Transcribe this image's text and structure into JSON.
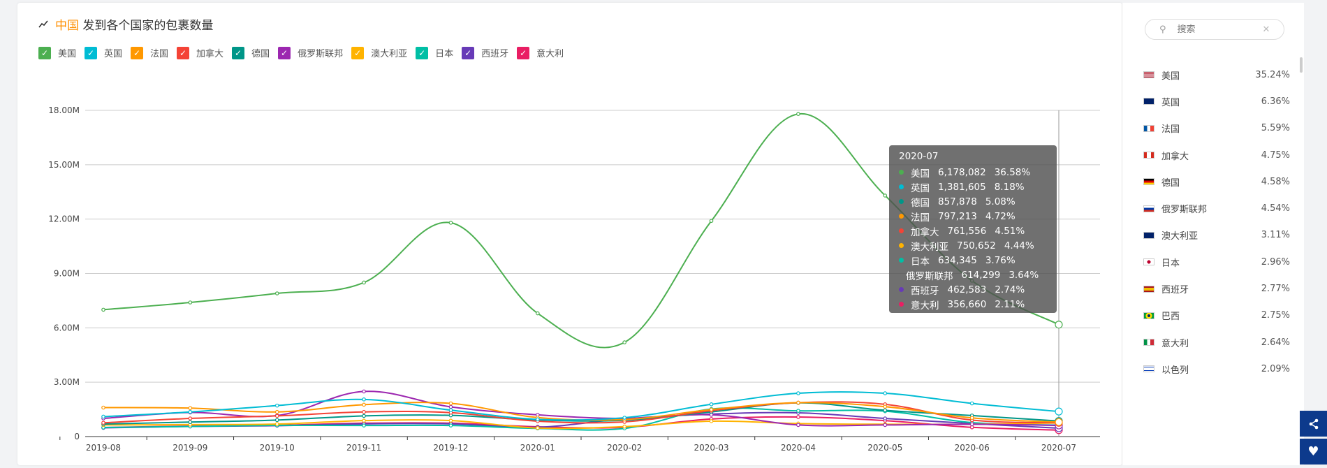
{
  "title": {
    "highlight": "中国",
    "text": "发到各个国家的包裹数量",
    "icon": "trend-line-icon"
  },
  "chart_data": {
    "type": "line",
    "smooth": true,
    "title": "中国 发到各个国家的包裹数量",
    "x": [
      "2019-08",
      "2019-09",
      "2019-10",
      "2019-11",
      "2019-12",
      "2020-01",
      "2020-02",
      "2020-03",
      "2020-04",
      "2020-05",
      "2020-06",
      "2020-07"
    ],
    "ylim": [
      0,
      18000000
    ],
    "yticks": [
      "0",
      "3.00M",
      "6.00M",
      "9.00M",
      "12.00M",
      "15.00M",
      "18.00M"
    ],
    "grid": true,
    "legend_position": "top-left",
    "series": [
      {
        "name": "美国",
        "color": "#4caf50",
        "values": [
          7000000,
          7400000,
          7900000,
          8500000,
          11800000,
          6800000,
          5200000,
          11900000,
          17800000,
          13300000,
          8600000,
          6178082
        ]
      },
      {
        "name": "英国",
        "color": "#00bcd4",
        "values": [
          1100000,
          1360000,
          1710000,
          2050000,
          1460000,
          950000,
          1040000,
          1780000,
          2390000,
          2390000,
          1830000,
          1381605
        ]
      },
      {
        "name": "法国",
        "color": "#ff9800",
        "values": [
          1600000,
          1570000,
          1360000,
          1760000,
          1830000,
          1050000,
          940000,
          1490000,
          1870000,
          1650000,
          1030000,
          797213
        ]
      },
      {
        "name": "加拿大",
        "color": "#f44336",
        "values": [
          760000,
          1000000,
          1140000,
          1360000,
          1320000,
          850000,
          810000,
          1430000,
          1870000,
          1780000,
          910000,
          761556
        ]
      },
      {
        "name": "德国",
        "color": "#009688",
        "values": [
          690000,
          800000,
          910000,
          1140000,
          1170000,
          910000,
          900000,
          1360000,
          1860000,
          1450000,
          1160000,
          857878
        ]
      },
      {
        "name": "俄罗斯联邦",
        "color": "#9c27b0",
        "values": [
          1000000,
          1330000,
          1160000,
          2490000,
          1640000,
          1200000,
          1000000,
          1200000,
          640000,
          640000,
          680000,
          614299
        ]
      },
      {
        "name": "澳大利亚",
        "color": "#ffb300",
        "values": [
          640000,
          660000,
          690000,
          880000,
          880000,
          470000,
          550000,
          850000,
          720000,
          680000,
          680000,
          750652
        ]
      },
      {
        "name": "日本",
        "color": "#00bfa5",
        "values": [
          500000,
          560000,
          620000,
          610000,
          610000,
          450000,
          450000,
          1520000,
          1420000,
          1400000,
          770000,
          634345
        ]
      },
      {
        "name": "西班牙",
        "color": "#673ab7",
        "values": [
          480000,
          560000,
          600000,
          700000,
          700000,
          520000,
          980000,
          1240000,
          1310000,
          1000000,
          720000,
          462583
        ]
      },
      {
        "name": "意大利",
        "color": "#e91e63",
        "values": [
          500000,
          580000,
          620000,
          740000,
          740000,
          540000,
          510000,
          970000,
          1080000,
          880000,
          510000,
          356660
        ]
      }
    ]
  },
  "tooltip": {
    "title": "2020-07",
    "rows": [
      {
        "name": "美国",
        "value": "6,178,082",
        "pct": "36.58%",
        "color": "#4caf50"
      },
      {
        "name": "英国",
        "value": "1,381,605",
        "pct": "8.18%",
        "color": "#00bcd4"
      },
      {
        "name": "德国",
        "value": "857,878",
        "pct": "5.08%",
        "color": "#009688"
      },
      {
        "name": "法国",
        "value": "797,213",
        "pct": "4.72%",
        "color": "#ff9800"
      },
      {
        "name": "加拿大",
        "value": "761,556",
        "pct": "4.51%",
        "color": "#f44336"
      },
      {
        "name": "澳大利亚",
        "value": "750,652",
        "pct": "4.44%",
        "color": "#ffb300"
      },
      {
        "name": "日本",
        "value": "634,345",
        "pct": "3.76%",
        "color": "#00bfa5"
      },
      {
        "name": "俄罗斯联邦",
        "value": "614,299",
        "pct": "3.64%",
        "color": "#9c27b0"
      },
      {
        "name": "西班牙",
        "value": "462,583",
        "pct": "2.74%",
        "color": "#673ab7"
      },
      {
        "name": "意大利",
        "value": "356,660",
        "pct": "2.11%",
        "color": "#e91e63"
      }
    ]
  },
  "panel": {
    "search": {
      "placeholder": "搜索",
      "icon": "search-icon",
      "clear_icon": "close-icon"
    },
    "countries": [
      {
        "name": "美国",
        "pct": "35.24%",
        "flag": "us-flag"
      },
      {
        "name": "英国",
        "pct": "6.36%",
        "flag": "gb-flag"
      },
      {
        "name": "法国",
        "pct": "5.59%",
        "flag": "fr-flag"
      },
      {
        "name": "加拿大",
        "pct": "4.75%",
        "flag": "ca-flag"
      },
      {
        "name": "德国",
        "pct": "4.58%",
        "flag": "de-flag"
      },
      {
        "name": "俄罗斯联邦",
        "pct": "4.54%",
        "flag": "ru-flag"
      },
      {
        "name": "澳大利亚",
        "pct": "3.11%",
        "flag": "au-flag"
      },
      {
        "name": "日本",
        "pct": "2.96%",
        "flag": "jp-flag"
      },
      {
        "name": "西班牙",
        "pct": "2.77%",
        "flag": "es-flag"
      },
      {
        "name": "巴西",
        "pct": "2.75%",
        "flag": "br-flag"
      },
      {
        "name": "意大利",
        "pct": "2.64%",
        "flag": "it-flag"
      },
      {
        "name": "以色列",
        "pct": "2.09%",
        "flag": "il-flag"
      }
    ]
  },
  "actions": {
    "share_icon": "share-icon",
    "like_icon": "heart-icon"
  }
}
